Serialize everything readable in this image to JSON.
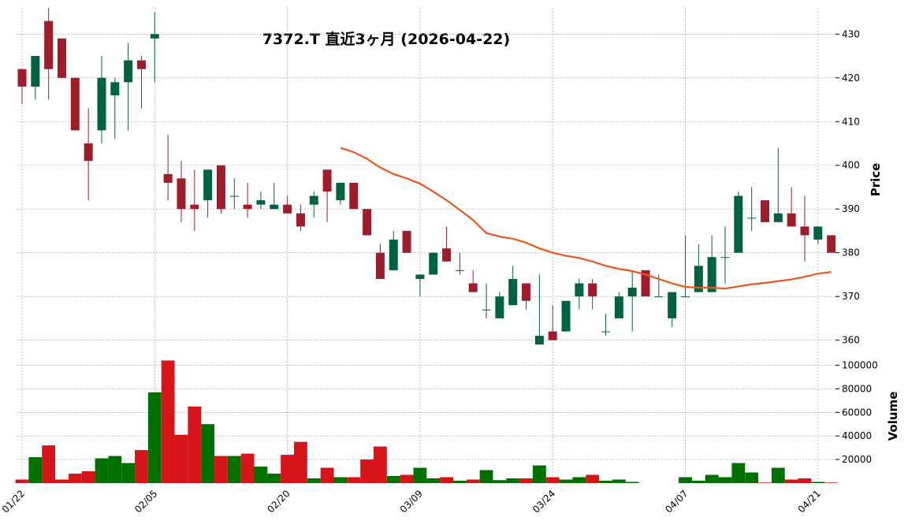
{
  "chart_data": {
    "type": "candlestick",
    "title": "7372.T  直近3ヶ月  (2026-04-22)",
    "ylabel": "Price",
    "volume_label": "Volume",
    "categories": [
      "01/22",
      null,
      null,
      null,
      null,
      null,
      null,
      null,
      null,
      null,
      "02/05",
      null,
      null,
      null,
      null,
      null,
      null,
      null,
      null,
      null,
      "02/20",
      null,
      null,
      null,
      null,
      null,
      null,
      null,
      null,
      null,
      "03/09",
      null,
      null,
      null,
      null,
      null,
      null,
      null,
      null,
      null,
      "03/24",
      null,
      null,
      null,
      null,
      null,
      null,
      null,
      null,
      null,
      "04/07",
      null,
      null,
      null,
      null,
      null,
      null,
      null,
      null,
      null,
      "04/21",
      null
    ],
    "open": [
      422,
      418,
      433,
      429,
      420,
      405,
      408,
      416,
      419,
      424,
      429,
      398,
      397,
      391,
      392,
      400,
      393,
      391,
      391,
      390,
      391,
      389,
      391,
      399,
      392,
      396,
      390,
      380,
      376,
      385,
      374,
      375,
      381,
      376,
      373,
      367,
      365,
      368,
      373,
      359,
      362,
      362,
      370,
      373,
      362,
      365,
      370,
      376,
      370,
      365,
      370,
      371,
      371,
      379,
      380,
      388,
      392,
      387,
      389,
      386,
      383,
      384
    ],
    "high": [
      422,
      425,
      436,
      429,
      420,
      413,
      425,
      420,
      428,
      425,
      435,
      407,
      401,
      399,
      399,
      400,
      397,
      396,
      394,
      396,
      393,
      391,
      394,
      399,
      396,
      396,
      390,
      382,
      385,
      385,
      375,
      380,
      386,
      380,
      376,
      373,
      371,
      377,
      373,
      375,
      368,
      369,
      374,
      374,
      366,
      371,
      376,
      376,
      375,
      371,
      384,
      382,
      384,
      386,
      394,
      395,
      392,
      404,
      395,
      393,
      386,
      384
    ],
    "low": [
      414,
      415,
      415,
      420,
      408,
      392,
      405,
      406,
      408,
      413,
      419,
      392,
      387,
      385,
      388,
      389,
      390,
      388,
      390,
      390,
      389,
      385,
      388,
      387,
      391,
      390,
      384,
      374,
      376,
      380,
      370,
      375,
      378,
      375,
      371,
      365,
      365,
      368,
      367,
      359,
      360,
      362,
      367,
      367,
      361,
      365,
      362,
      370,
      370,
      363,
      370,
      371,
      371,
      373,
      380,
      385,
      387,
      387,
      386,
      378,
      382,
      380
    ],
    "close": [
      418,
      425,
      422,
      420,
      408,
      401,
      420,
      419,
      424,
      422,
      430,
      396,
      390,
      390,
      399,
      390,
      393,
      390,
      392,
      391,
      389,
      386,
      393,
      394,
      396,
      390,
      384,
      374,
      383,
      380,
      375,
      380,
      378,
      376,
      371,
      367,
      370,
      374,
      369,
      361,
      360,
      369,
      373,
      370,
      362,
      370,
      372,
      370,
      370,
      371,
      370,
      377,
      379,
      379,
      393,
      388,
      387,
      389,
      386,
      384,
      386,
      380
    ],
    "volume": [
      3000,
      22000,
      32000,
      3000,
      8000,
      10000,
      21000,
      23000,
      17000,
      28000,
      77000,
      104000,
      41000,
      65000,
      50000,
      23000,
      23000,
      25000,
      14000,
      8000,
      24000,
      35000,
      4000,
      13000,
      5000,
      5000,
      20000,
      31000,
      6000,
      7000,
      13000,
      4000,
      5000,
      2000,
      3000,
      11000,
      2500,
      4000,
      4000,
      15000,
      5000,
      3000,
      5000,
      7000,
      2000,
      3000,
      1000,
      null,
      null,
      null,
      5000,
      2000,
      7000,
      5000,
      17000,
      9000,
      500,
      13000,
      3000,
      4000,
      1000,
      500
    ],
    "ma": [
      null,
      null,
      null,
      null,
      null,
      null,
      null,
      null,
      null,
      null,
      null,
      null,
      null,
      null,
      null,
      null,
      null,
      null,
      null,
      null,
      null,
      null,
      null,
      null,
      404,
      403,
      401.5,
      399.5,
      398,
      397,
      395.8,
      394,
      392,
      389.8,
      387.5,
      384.5,
      383.7,
      383.2,
      382.3,
      381,
      380,
      379.3,
      378.8,
      378,
      377,
      376.3,
      375.8,
      375,
      374,
      373,
      372.2,
      372,
      372,
      371.8,
      372.3,
      372.8,
      373.1,
      373.5,
      373.9,
      374.5,
      375.2,
      375.6
    ],
    "up_color": "#006340",
    "down_color": "#a01c2a",
    "volume_up_color": "#007000",
    "volume_down_color": "#d7141a",
    "ma_color": "#e8571c",
    "ylim": [
      358.5,
      436
    ],
    "yticks": [
      360,
      370,
      380,
      390,
      400,
      410,
      420,
      430
    ],
    "volume_ylim": [
      0,
      113000
    ],
    "volume_yticks": [
      20000,
      40000,
      60000,
      80000,
      100000
    ],
    "grid": true
  }
}
